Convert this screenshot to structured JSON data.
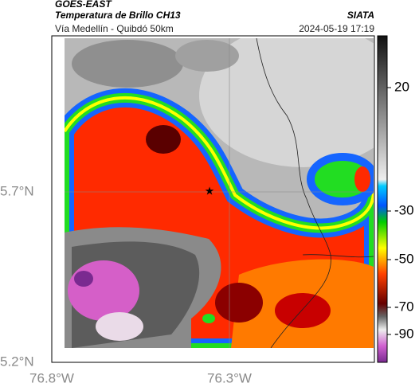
{
  "header": {
    "source": "GOES-EAST",
    "product": "Temperatura de Brillo CH13",
    "agency": "SIATA",
    "location": "Vía Medellín - Quibdó 50km",
    "datetime": "2024-05-19 17:19"
  },
  "map": {
    "lat_labels": [
      "5.7°N",
      "5.2°N"
    ],
    "lon_labels": [
      "76.8°W",
      "76.3°W"
    ]
  },
  "colorbar": {
    "ticks": [
      20,
      -30,
      -50,
      -70,
      -90
    ]
  }
}
